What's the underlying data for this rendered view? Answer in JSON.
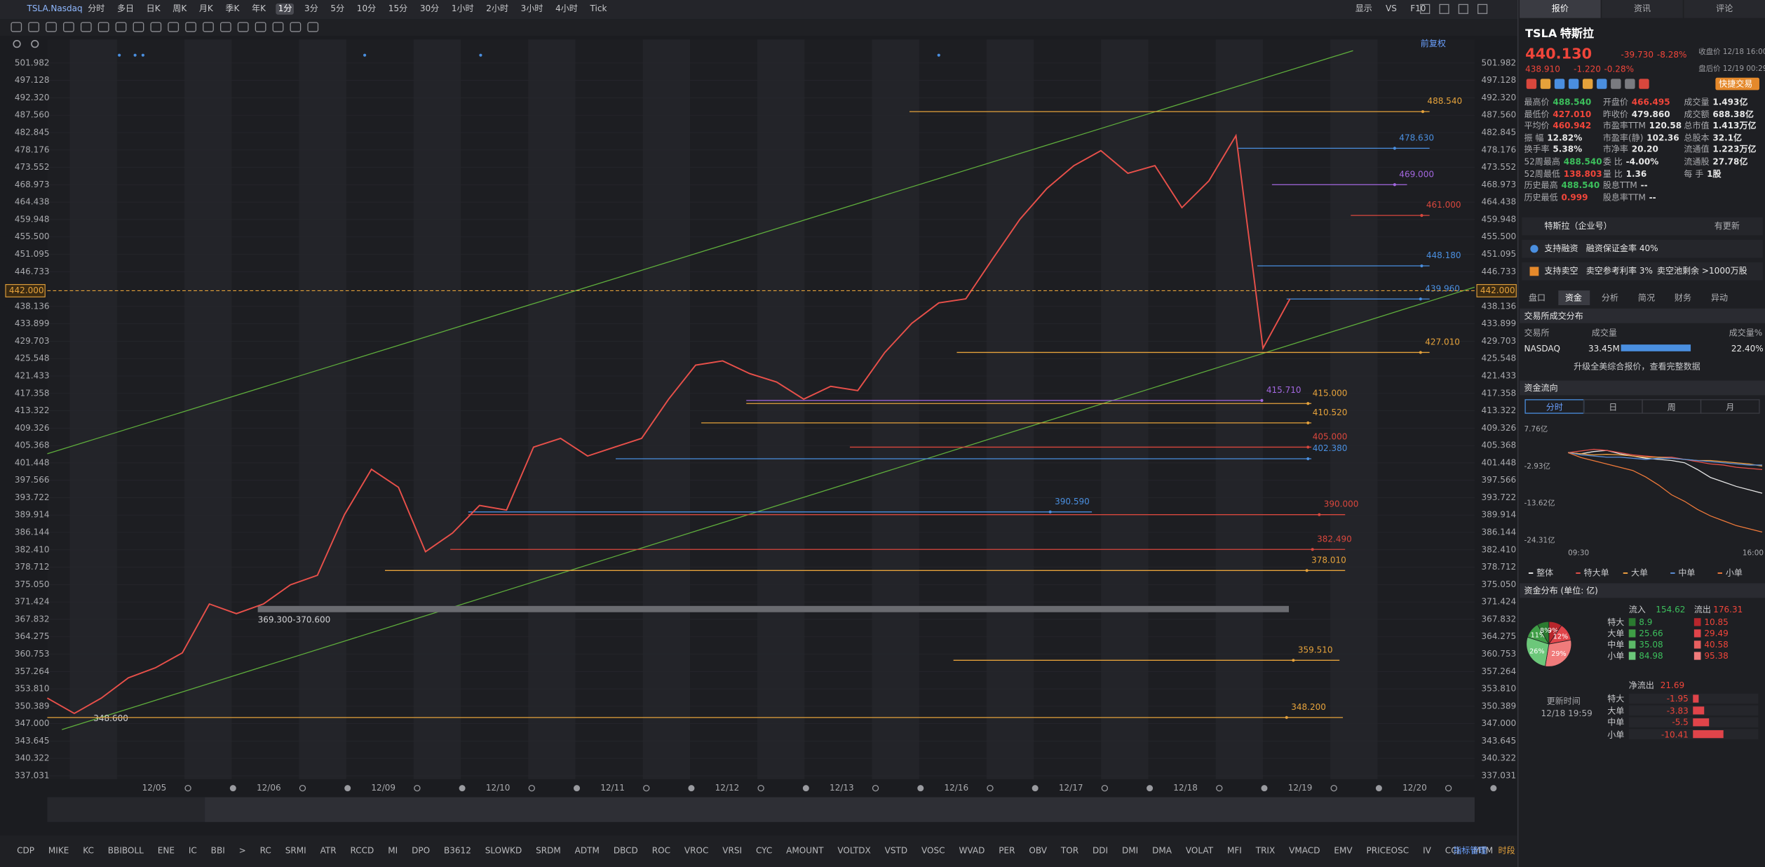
{
  "toolbar": {
    "symbol": "TSLA.Nasdaq",
    "periods": [
      "分时",
      "多日",
      "日K",
      "周K",
      "月K",
      "季K",
      "年K",
      "1分",
      "3分",
      "5分",
      "10分",
      "15分",
      "30分",
      "1小时",
      "2小时",
      "3小时",
      "4小时",
      "Tick"
    ],
    "active_period": 7,
    "right_items": [
      "显示",
      "VS",
      "F10"
    ]
  },
  "chart_data": {
    "type": "line",
    "color": "#e8504a",
    "values": [
      352,
      349,
      352,
      356,
      358,
      361,
      371,
      369,
      371,
      375,
      377,
      390,
      400,
      396,
      382,
      386,
      392,
      391,
      405,
      407,
      403,
      405,
      407,
      416,
      424,
      425,
      422,
      420,
      416,
      419,
      418,
      427,
      434,
      439,
      440,
      450,
      460,
      468,
      474,
      478,
      472,
      474,
      463,
      470,
      482,
      428,
      440
    ],
    "day_labels": [
      "12/05",
      "12/06",
      "12/09",
      "12/10",
      "12/11",
      "12/12",
      "12/13",
      "12/16",
      "12/17",
      "12/18",
      "12/19",
      "12/20"
    ],
    "ylim": [
      337.031,
      501.982
    ],
    "log_scale": true,
    "yticks": [
      501.982,
      497.128,
      {
        "value": 492.32,
        "label": "492.320"
      },
      {
        "value": 487.56,
        "label": "487.560"
      },
      482.845,
      478.176,
      473.552,
      468.973,
      464.438,
      459.948,
      {
        "value": 455.5,
        "label": "455.500"
      },
      451.095,
      446.733,
      438.136,
      433.899,
      429.703,
      425.548,
      421.433,
      417.358,
      413.322,
      409.326,
      405.368,
      401.448,
      397.566,
      393.722,
      389.914,
      386.144,
      {
        "value": 382.41,
        "label": "382.410"
      },
      378.712,
      {
        "value": 375.05,
        "label": "375.050"
      },
      371.424,
      367.832,
      364.275,
      360.753,
      357.264,
      {
        "value": 353.81,
        "label": "353.810"
      },
      350.389,
      {
        "value": 347,
        "label": "347.000"
      },
      343.645,
      340.322,
      337.031
    ],
    "current_price": {
      "value": 442,
      "label": "442.000"
    },
    "adjust_mode": "前复权",
    "trend_color": "#5fae3c",
    "price_lines": [
      {
        "value": 488.54,
        "label": "488.540",
        "color": "#e5a23b"
      },
      {
        "value": 478.63,
        "label": "478.630",
        "color": "#4a8fe0"
      },
      {
        "value": 469,
        "label": "469.000",
        "color": "#a367e0"
      },
      {
        "value": 461,
        "label": "461.000",
        "color": "#d9473d"
      },
      {
        "value": 448.18,
        "label": "448.180",
        "color": "#4a8fe0"
      },
      {
        "value": 439.96,
        "label": "439.960",
        "color": "#4a8fe0"
      },
      {
        "value": 427.01,
        "label": "427.010",
        "color": "#e5a23b"
      },
      {
        "value": 415.71,
        "label": "415.710",
        "color": "#a367e0"
      },
      {
        "value": 415,
        "label": "415.000",
        "color": "#e5a23b"
      },
      {
        "value": 410.52,
        "label": "410.520",
        "color": "#e5a23b"
      },
      {
        "value": 405,
        "label": "405.000",
        "color": "#d9473d"
      },
      {
        "value": 402.38,
        "label": "402.380",
        "color": "#4a8fe0"
      },
      {
        "value": 390.59,
        "label": "390.590",
        "color": "#4a8fe0"
      },
      {
        "value": 390,
        "label": "390.000",
        "color": "#d9473d"
      },
      {
        "value": 382.49,
        "label": "382.490",
        "color": "#d9473d"
      },
      {
        "value": 378.01,
        "label": "378.010",
        "color": "#e5a23b"
      },
      {
        "value": 359.51,
        "label": "359.510",
        "color": "#e5a23b"
      },
      {
        "value": 348.2,
        "label": "348.200",
        "color": "#e5a23b"
      }
    ],
    "annotations": [
      {
        "value": 348.6,
        "label": "348.600"
      },
      {
        "range": [
          369.3,
          370.6
        ],
        "label": "369.300-370.600"
      }
    ]
  },
  "quote": {
    "tabs": [
      "报价",
      "资讯",
      "评论"
    ],
    "active_tab": 0,
    "symbol": "TSLA",
    "name": "特斯拉",
    "price": "440.130",
    "change": "-39.730",
    "change_pct": "-8.28%",
    "close_time": "收盘价 12/18 16:00",
    "after_price": "438.910",
    "after_change": "-1.220",
    "after_pct": "-0.28%",
    "after_time": "盘后价 12/19 00:29",
    "trade_button": "快捷交易",
    "stats": [
      [
        {
          "label": "最高价",
          "value": "488.540",
          "tone": "up"
        },
        {
          "label": "开盘价",
          "value": "466.495",
          "tone": "down"
        },
        {
          "label": "成交量",
          "value": "1.493亿"
        }
      ],
      [
        {
          "label": "最低价",
          "value": "427.010",
          "tone": "down"
        },
        {
          "label": "昨收价",
          "value": "479.860"
        },
        {
          "label": "成交额",
          "value": "688.38亿"
        }
      ],
      [
        {
          "label": "平均价",
          "value": "460.942",
          "tone": "down"
        },
        {
          "label": "市盈率TTM",
          "value": "120.58"
        },
        {
          "label": "总市值",
          "value": "1.413万亿"
        }
      ],
      [
        {
          "label": "振 幅",
          "value": "12.82%"
        },
        {
          "label": "市盈率(静)",
          "value": "102.36"
        },
        {
          "label": "总股本",
          "value": "32.1亿"
        }
      ],
      [
        {
          "label": "换手率",
          "value": "5.38%"
        },
        {
          "label": "市净率",
          "value": "20.20"
        },
        {
          "label": "流通值",
          "value": "1.223万亿"
        }
      ],
      [
        {
          "label": "52周最高",
          "value": "488.540",
          "tone": "up"
        },
        {
          "label": "委 比",
          "value": "-4.00%"
        },
        {
          "label": "流通股",
          "value": "27.78亿"
        }
      ],
      [
        {
          "label": "52周最低",
          "value": "138.803",
          "tone": "down"
        },
        {
          "label": "量 比",
          "value": "1.36"
        },
        {
          "label": "每 手",
          "value": "1股"
        }
      ],
      [
        {
          "label": "历史最高",
          "value": "488.540",
          "tone": "up"
        },
        {
          "label": "股息TTM",
          "value": "--"
        }
      ],
      [
        {
          "label": "历史最低",
          "value": "0.999",
          "tone": "down"
        },
        {
          "label": "股息率TTM",
          "value": "--"
        }
      ]
    ],
    "company": "特斯拉（企业号）",
    "company_update": "有更新",
    "margin": [
      "支持融资",
      "融资保证金率 40%"
    ],
    "short": [
      "支持卖空",
      "卖空参考利率 3%",
      "卖空池剩余 >1000万股"
    ],
    "sub_tabs": [
      "盘口",
      "资金",
      "分析",
      "简况",
      "财务",
      "异动"
    ],
    "active_sub_tab": 1,
    "exchange": {
      "title": "交易所成交分布",
      "headers": [
        "交易所",
        "成交量",
        "成交量%"
      ],
      "rows": [
        [
          "NASDAQ",
          "33.45M",
          "22.40%"
        ]
      ],
      "note": "升级全美综合报价，查看完整数据"
    },
    "flow": {
      "title": "资金流向",
      "tabs": [
        "分时",
        "日",
        "周",
        "月"
      ],
      "active_tab": 0,
      "y_labels": [
        "7.76亿",
        "-2.93亿",
        "-13.62亿",
        "-24.31亿"
      ],
      "x_labels": [
        "09:30",
        "16:00"
      ],
      "legend": [
        {
          "name": "整体",
          "color": "#e6e6e6"
        },
        {
          "name": "特大单",
          "color": "#e8504a"
        },
        {
          "name": "大单",
          "color": "#f0a040"
        },
        {
          "name": "中单",
          "color": "#5b8fd8"
        },
        {
          "name": "小单",
          "color": "#f07a3a"
        }
      ]
    },
    "distribution": {
      "title": "资金分布 (单位: 亿)",
      "pie": [
        {
          "label": "9%",
          "value": 9,
          "color": "#b8262c"
        },
        {
          "label": "12%",
          "value": 12,
          "color": "#e0444a"
        },
        {
          "label": "29%",
          "value": 29,
          "color": "#f07b7b"
        },
        {
          "label": "26%",
          "value": 26,
          "color": "#6cc77a"
        },
        {
          "label": "11%",
          "value": 11,
          "color": "#3f9e46"
        },
        {
          "label": "8%",
          "value": 8,
          "color": "#2b7a30"
        }
      ],
      "inflow_label": "流入",
      "inflow": "154.62",
      "outflow_label": "流出",
      "outflow": "176.31",
      "rows": [
        {
          "label": "特大",
          "in": "8.9",
          "out": "10.85"
        },
        {
          "label": "大单",
          "in": "25.66",
          "out": "29.49"
        },
        {
          "label": "中单",
          "in": "35.08",
          "out": "40.58"
        },
        {
          "label": "小单",
          "in": "84.98",
          "out": "95.38"
        }
      ],
      "update_label": "更新时间",
      "update_time": "12/18 19:59",
      "net_label": "净流出",
      "net": "21.69",
      "net_rows": [
        {
          "label": "特大",
          "value": -1.95
        },
        {
          "label": "大单",
          "value": -3.83
        },
        {
          "label": "中单",
          "value": -5.5
        },
        {
          "label": "小单",
          "value": -10.41
        }
      ]
    }
  },
  "indicators": [
    "CDP",
    "MIKE",
    "KC",
    "BBIBOLL",
    "ENE",
    "IC",
    "BBI",
    ">",
    "RC",
    "SRMI",
    "ATR",
    "RCCD",
    "MI",
    "DPO",
    "B3612",
    "SLOWKD",
    "SRDM",
    "ADTM",
    "DBCD",
    "ROC",
    "VROC",
    "VRSI",
    "CYC",
    "AMOUNT",
    "VOLTDX",
    "VSTD",
    "VOSC",
    "WVAD",
    "PER",
    "OBV",
    "TOR",
    "DDI",
    "DMI",
    "DMA",
    "VOLAT",
    "MFI",
    "TRIX",
    "VMACD",
    "EMV",
    "PRICEOSC",
    "IV",
    "CCI",
    "MTM"
  ],
  "indicator_actions": [
    "指标管理",
    "时段"
  ]
}
